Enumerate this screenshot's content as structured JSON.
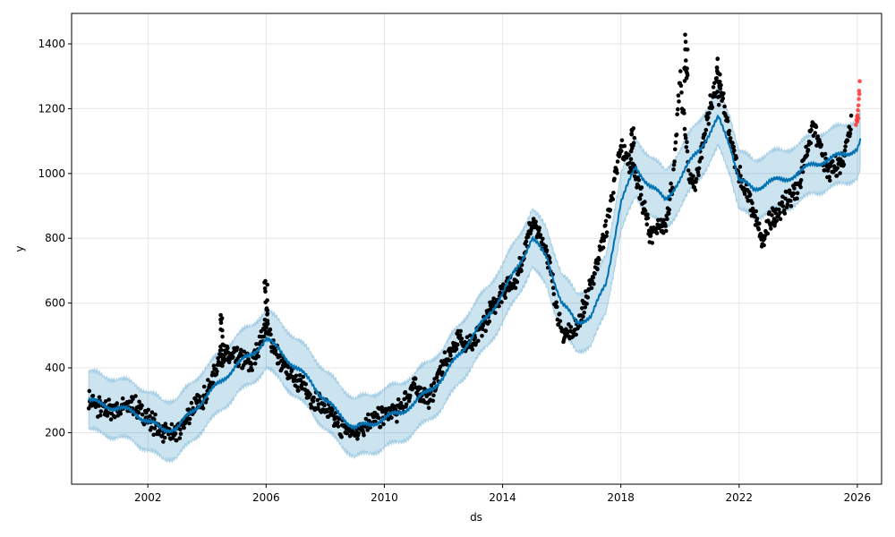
{
  "chart_data": {
    "type": "scatter",
    "title": "",
    "xlabel": "ds",
    "ylabel": "y",
    "xlim": [
      1999.42,
      2026.82
    ],
    "ylim": [
      41,
      1494
    ],
    "x_ticks": [
      2002,
      2006,
      2010,
      2014,
      2018,
      2022,
      2026
    ],
    "y_ticks": [
      200,
      400,
      600,
      800,
      1000,
      1200,
      1400
    ],
    "grid": true,
    "legend": "none",
    "colors": {
      "observed": "#000000",
      "recent": "#ff3333",
      "forecast_line": "#0072b2",
      "interval": "#0072b2",
      "interval_opacity": 0.2
    },
    "forecast": {
      "x": [
        2000.0,
        2000.5,
        2001.0,
        2001.5,
        2002.0,
        2002.5,
        2003.0,
        2003.5,
        2004.0,
        2004.5,
        2005.0,
        2005.5,
        2006.0,
        2006.5,
        2007.0,
        2007.5,
        2008.0,
        2008.5,
        2009.0,
        2009.5,
        2010.0,
        2010.5,
        2011.0,
        2011.5,
        2012.0,
        2012.5,
        2013.0,
        2013.5,
        2014.0,
        2014.5,
        2015.0,
        2015.5,
        2016.0,
        2016.5,
        2017.0,
        2017.5,
        2018.0,
        2018.5,
        2019.0,
        2019.5,
        2020.0,
        2020.5,
        2021.0,
        2021.3,
        2021.7,
        2022.0,
        2022.5,
        2023.0,
        2023.5,
        2024.0,
        2024.5,
        2025.0,
        2025.5,
        2026.0,
        2026.1
      ],
      "yhat": [
        300,
        285,
        275,
        265,
        235,
        210,
        215,
        265,
        315,
        360,
        410,
        440,
        490,
        450,
        400,
        360,
        300,
        255,
        215,
        225,
        245,
        260,
        290,
        330,
        370,
        440,
        500,
        560,
        630,
        710,
        800,
        740,
        600,
        540,
        560,
        660,
        910,
        1020,
        960,
        920,
        980,
        1060,
        1120,
        1170,
        1090,
        980,
        950,
        975,
        980,
        1000,
        1030,
        1040,
        1060,
        1075,
        1100
      ],
      "band": 90
    },
    "observed": {
      "anchors": [
        [
          2000.0,
          300
        ],
        [
          2000.5,
          270
        ],
        [
          2001.0,
          275
        ],
        [
          2001.5,
          285
        ],
        [
          2002.0,
          245
        ],
        [
          2002.5,
          200
        ],
        [
          2003.0,
          195
        ],
        [
          2003.5,
          275
        ],
        [
          2004.0,
          320
        ],
        [
          2004.3,
          400
        ],
        [
          2004.5,
          440
        ],
        [
          2005.0,
          430
        ],
        [
          2005.5,
          410
        ],
        [
          2006.0,
          530
        ],
        [
          2006.5,
          410
        ],
        [
          2007.0,
          370
        ],
        [
          2007.5,
          310
        ],
        [
          2008.0,
          280
        ],
        [
          2008.5,
          215
        ],
        [
          2009.0,
          200
        ],
        [
          2009.5,
          240
        ],
        [
          2010.0,
          250
        ],
        [
          2010.5,
          270
        ],
        [
          2011.0,
          345
        ],
        [
          2011.5,
          300
        ],
        [
          2012.0,
          410
        ],
        [
          2012.5,
          490
        ],
        [
          2013.0,
          470
        ],
        [
          2013.5,
          560
        ],
        [
          2014.0,
          640
        ],
        [
          2014.5,
          680
        ],
        [
          2015.0,
          850
        ],
        [
          2015.5,
          760
        ],
        [
          2016.0,
          500
        ],
        [
          2016.5,
          520
        ],
        [
          2017.0,
          660
        ],
        [
          2017.5,
          830
        ],
        [
          2018.0,
          1080
        ],
        [
          2018.5,
          1000
        ],
        [
          2019.0,
          810
        ],
        [
          2019.5,
          840
        ],
        [
          2019.8,
          1000
        ],
        [
          2020.0,
          1300
        ],
        [
          2020.3,
          1000
        ],
        [
          2020.5,
          960
        ],
        [
          2021.0,
          1200
        ],
        [
          2021.3,
          1300
        ],
        [
          2021.7,
          1100
        ],
        [
          2022.0,
          1000
        ],
        [
          2022.5,
          880
        ],
        [
          2022.8,
          780
        ],
        [
          2023.0,
          850
        ],
        [
          2023.5,
          900
        ],
        [
          2024.0,
          960
        ],
        [
          2024.5,
          1150
        ],
        [
          2025.0,
          1000
        ],
        [
          2025.5,
          1040
        ],
        [
          2025.8,
          1170
        ]
      ],
      "spike_values": [
        [
          2004.5,
          580
        ],
        [
          2006.0,
          680
        ],
        [
          2018.4,
          1160
        ],
        [
          2020.2,
          1430
        ],
        [
          2021.3,
          1360
        ]
      ]
    },
    "recent_points": {
      "x": [
        2025.95,
        2025.97,
        2025.99,
        2026.0,
        2026.01,
        2026.02,
        2026.03,
        2026.04,
        2026.05,
        2026.06,
        2026.07,
        2026.08
      ],
      "y": [
        1150,
        1165,
        1175,
        1160,
        1180,
        1195,
        1170,
        1210,
        1230,
        1255,
        1245,
        1285
      ]
    }
  }
}
